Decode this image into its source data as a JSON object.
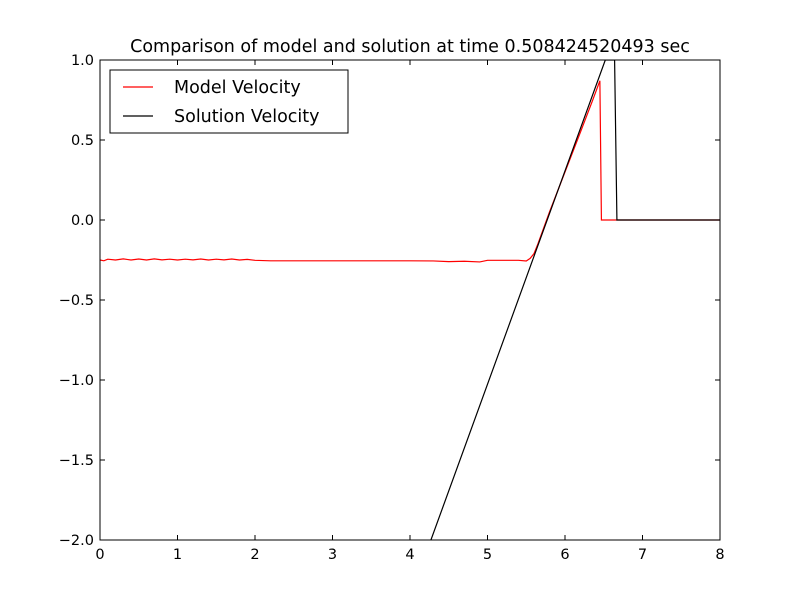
{
  "chart_data": {
    "type": "line",
    "title": "Comparison of model and solution at time 0.508424520493 sec",
    "xlabel": "",
    "ylabel": "",
    "xlim": [
      0,
      8
    ],
    "ylim": [
      -2.0,
      1.0
    ],
    "x_ticks": [
      0,
      1,
      2,
      3,
      4,
      5,
      6,
      7,
      8
    ],
    "x_tick_labels": [
      "0",
      "1",
      "2",
      "3",
      "4",
      "5",
      "6",
      "7",
      "8"
    ],
    "y_ticks": [
      1.0,
      0.5,
      0.0,
      -0.5,
      -1.0,
      -1.5,
      -2.0
    ],
    "y_tick_labels": [
      "1.0",
      "0.5",
      "0.0",
      "−0.5",
      "−1.0",
      "−1.5",
      "−2.0"
    ],
    "grid": false,
    "legend_position": "top-left",
    "series": [
      {
        "name": "Model Velocity",
        "color": "#ff0000",
        "points": [
          [
            0.0,
            -0.25
          ],
          [
            0.05,
            -0.255
          ],
          [
            0.1,
            -0.245
          ],
          [
            0.2,
            -0.25
          ],
          [
            0.3,
            -0.243
          ],
          [
            0.4,
            -0.25
          ],
          [
            0.5,
            -0.244
          ],
          [
            0.6,
            -0.25
          ],
          [
            0.7,
            -0.243
          ],
          [
            0.8,
            -0.249
          ],
          [
            0.9,
            -0.245
          ],
          [
            1.0,
            -0.25
          ],
          [
            1.1,
            -0.245
          ],
          [
            1.2,
            -0.249
          ],
          [
            1.3,
            -0.244
          ],
          [
            1.4,
            -0.25
          ],
          [
            1.5,
            -0.245
          ],
          [
            1.6,
            -0.249
          ],
          [
            1.7,
            -0.244
          ],
          [
            1.8,
            -0.25
          ],
          [
            1.9,
            -0.246
          ],
          [
            2.0,
            -0.252
          ],
          [
            2.2,
            -0.255
          ],
          [
            2.5,
            -0.255
          ],
          [
            3.0,
            -0.255
          ],
          [
            3.5,
            -0.255
          ],
          [
            4.0,
            -0.255
          ],
          [
            4.3,
            -0.256
          ],
          [
            4.5,
            -0.26
          ],
          [
            4.7,
            -0.258
          ],
          [
            4.9,
            -0.262
          ],
          [
            5.0,
            -0.252
          ],
          [
            5.2,
            -0.252
          ],
          [
            5.4,
            -0.252
          ],
          [
            5.5,
            -0.256
          ],
          [
            5.55,
            -0.24
          ],
          [
            5.6,
            -0.21
          ],
          [
            5.65,
            -0.15
          ],
          [
            5.8,
            0.05
          ],
          [
            6.0,
            0.3
          ],
          [
            6.2,
            0.55
          ],
          [
            6.35,
            0.74
          ],
          [
            6.45,
            0.87
          ],
          [
            6.47,
            0.0
          ],
          [
            8.0,
            0.0
          ]
        ]
      },
      {
        "name": "Solution Velocity",
        "color": "#000000",
        "points": [
          [
            4.27,
            -2.0
          ],
          [
            6.52,
            1.0
          ],
          [
            6.64,
            1.0
          ],
          [
            6.67,
            0.0
          ],
          [
            8.0,
            0.0
          ]
        ]
      }
    ]
  }
}
